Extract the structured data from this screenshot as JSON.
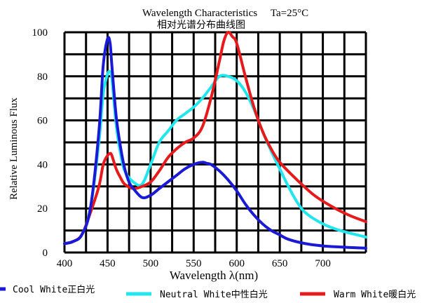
{
  "chart_data": {
    "type": "line",
    "title": "Wavelength Characteristics",
    "title_condition": "Ta=25°C",
    "subtitle": "相对光谱分布曲线图",
    "xlabel": "Wavelength λ(nm)",
    "ylabel": "Relative Luminous Flux",
    "xlim": [
      400,
      750
    ],
    "ylim": [
      0,
      100
    ],
    "x_ticks": [
      400,
      450,
      500,
      550,
      600,
      650,
      700
    ],
    "y_ticks": [
      0,
      20,
      40,
      60,
      80,
      100
    ],
    "grid": true,
    "legend_position": "bottom",
    "series": [
      {
        "name": "Cool White正白光",
        "color": "#1a1ad6",
        "x": [
          400,
          410,
          420,
          430,
          440,
          445,
          450,
          453,
          455,
          460,
          465,
          470,
          475,
          480,
          490,
          500,
          510,
          520,
          530,
          540,
          550,
          560,
          565,
          570,
          580,
          590,
          600,
          610,
          620,
          630,
          640,
          650,
          660,
          680,
          700,
          720,
          750
        ],
        "y": [
          4,
          5,
          8,
          20,
          55,
          85,
          97,
          95,
          85,
          62,
          48,
          38,
          32,
          29,
          25,
          26,
          29,
          32,
          35,
          38,
          40,
          41,
          40.5,
          40,
          37,
          33,
          28,
          22,
          17,
          13,
          10,
          8,
          6,
          4,
          3,
          2.5,
          2
        ]
      },
      {
        "name": "Neutral White中性白光",
        "color": "#22e6ee",
        "x": [
          400,
          410,
          420,
          430,
          440,
          445,
          450,
          453,
          455,
          460,
          465,
          470,
          480,
          490,
          500,
          510,
          520,
          530,
          540,
          550,
          560,
          570,
          580,
          590,
          600,
          610,
          620,
          630,
          640,
          650,
          660,
          670,
          680,
          700,
          720,
          750
        ],
        "y": [
          4,
          5,
          8,
          20,
          50,
          72,
          81,
          82,
          79,
          58,
          45,
          37,
          32,
          31,
          40,
          50,
          55,
          60,
          63,
          66,
          70,
          75,
          80,
          80,
          78,
          73,
          65,
          55,
          46,
          38,
          30,
          23,
          18,
          13,
          10,
          7
        ]
      },
      {
        "name": "Warm White暖白光",
        "color": "#e61a1a",
        "x": [
          400,
          410,
          420,
          430,
          440,
          445,
          450,
          453,
          455,
          460,
          465,
          470,
          480,
          490,
          500,
          510,
          520,
          530,
          540,
          550,
          560,
          570,
          580,
          585,
          590,
          595,
          600,
          610,
          620,
          630,
          640,
          650,
          670,
          690,
          710,
          730,
          750
        ],
        "y": [
          4,
          5,
          8,
          18,
          30,
          40,
          44,
          45,
          44,
          38,
          34,
          31,
          29,
          30,
          32,
          37,
          43,
          47,
          50,
          52,
          57,
          70,
          87,
          96,
          100,
          98,
          95,
          80,
          66,
          55,
          47,
          41,
          33,
          26,
          21,
          17,
          14
        ]
      }
    ]
  }
}
